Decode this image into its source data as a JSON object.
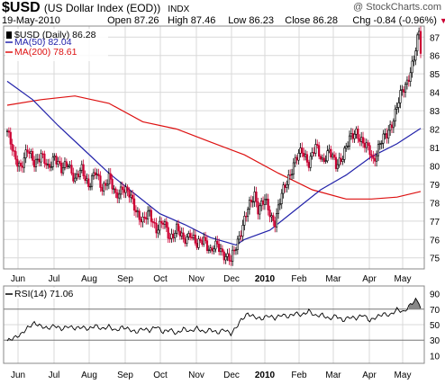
{
  "header": {
    "symbol": "$USD",
    "description": "(US Dollar Index (EOD))",
    "exchange": "INDX",
    "watermark": "@ StockCharts.com",
    "date": "19-May-2010",
    "open": "Open 87.26",
    "high": "High 87.46",
    "low": "Low 86.23",
    "close": "Close 86.28",
    "change": "Chg -0.84 (-0.96%)",
    "change_arrow": "▼"
  },
  "legend": {
    "price": "$USD (Daily) 86.28",
    "ma50": "MA(50) 82.04",
    "ma200": "MA(200) 78.61",
    "rsi": "RSI(14) 71.06"
  },
  "colors": {
    "up": "#000000",
    "down": "#cc0033",
    "ma50": "#2222aa",
    "ma200": "#dd1111",
    "grid": "#d9d9d9",
    "rsi_line": "#000000",
    "rsi_fill": "#888888"
  },
  "chart_data": [
    {
      "type": "candlestick",
      "series_name": "$USD (Daily)",
      "yticks": [
        75,
        76,
        77,
        78,
        79,
        80,
        81,
        82,
        83,
        84,
        85,
        86,
        87
      ],
      "ylim": [
        74.4,
        87.6
      ],
      "x_labels": [
        "Jun",
        "Jul",
        "Aug",
        "Sep",
        "Oct",
        "Nov",
        "Dec",
        "2010",
        "Feb",
        "Mar",
        "Apr",
        "May"
      ],
      "close_path": [
        [
          0,
          81.9
        ],
        [
          4,
          80.5
        ],
        [
          8,
          80.0
        ],
        [
          12,
          80.8
        ],
        [
          16,
          80.2
        ],
        [
          20,
          80.6
        ],
        [
          24,
          79.8
        ],
        [
          28,
          80.6
        ],
        [
          32,
          79.7
        ],
        [
          36,
          80.2
        ],
        [
          40,
          79.2
        ],
        [
          44,
          79.8
        ],
        [
          48,
          79.0
        ],
        [
          52,
          79.6
        ],
        [
          56,
          78.8
        ],
        [
          60,
          79.4
        ],
        [
          64,
          78.3
        ],
        [
          68,
          78.9
        ],
        [
          72,
          78.4
        ],
        [
          76,
          77.6
        ],
        [
          80,
          77.0
        ],
        [
          84,
          77.4
        ],
        [
          88,
          76.6
        ],
        [
          92,
          76.9
        ],
        [
          96,
          76.1
        ],
        [
          100,
          76.6
        ],
        [
          104,
          75.9
        ],
        [
          108,
          76.4
        ],
        [
          112,
          75.6
        ],
        [
          116,
          76.1
        ],
        [
          120,
          75.3
        ],
        [
          124,
          75.7
        ],
        [
          128,
          75.2
        ],
        [
          132,
          74.8
        ],
        [
          134,
          75.4
        ],
        [
          138,
          76.5
        ],
        [
          142,
          77.6
        ],
        [
          146,
          78.5
        ],
        [
          148,
          77.7
        ],
        [
          152,
          78.1
        ],
        [
          156,
          77.2
        ],
        [
          158,
          77.0
        ],
        [
          162,
          78.4
        ],
        [
          166,
          79.4
        ],
        [
          170,
          80.3
        ],
        [
          174,
          80.8
        ],
        [
          178,
          80.2
        ],
        [
          182,
          81.0
        ],
        [
          186,
          80.3
        ],
        [
          190,
          80.8
        ],
        [
          194,
          80.0
        ],
        [
          198,
          80.6
        ],
        [
          202,
          81.4
        ],
        [
          206,
          81.9
        ],
        [
          210,
          81.2
        ],
        [
          214,
          80.8
        ],
        [
          216,
          80.3
        ],
        [
          220,
          81.2
        ],
        [
          224,
          81.7
        ],
        [
          228,
          82.6
        ],
        [
          232,
          83.8
        ],
        [
          236,
          84.6
        ],
        [
          240,
          85.8
        ],
        [
          242,
          86.8
        ],
        [
          243,
          87.2
        ],
        [
          244,
          86.3
        ]
      ],
      "ma50": [
        [
          0,
          84.6
        ],
        [
          15,
          83.6
        ],
        [
          30,
          82.2
        ],
        [
          45,
          80.9
        ],
        [
          60,
          79.6
        ],
        [
          75,
          78.5
        ],
        [
          90,
          77.4
        ],
        [
          105,
          76.8
        ],
        [
          120,
          76.1
        ],
        [
          135,
          75.7
        ],
        [
          140,
          76.0
        ],
        [
          155,
          76.5
        ],
        [
          170,
          77.6
        ],
        [
          185,
          78.7
        ],
        [
          200,
          79.5
        ],
        [
          215,
          80.5
        ],
        [
          230,
          81.2
        ],
        [
          244,
          82.04
        ]
      ],
      "ma200": [
        [
          0,
          83.3
        ],
        [
          20,
          83.6
        ],
        [
          40,
          83.8
        ],
        [
          60,
          83.4
        ],
        [
          80,
          82.4
        ],
        [
          100,
          82.0
        ],
        [
          120,
          81.3
        ],
        [
          140,
          80.6
        ],
        [
          160,
          79.6
        ],
        [
          180,
          78.7
        ],
        [
          200,
          78.2
        ],
        [
          215,
          78.2
        ],
        [
          230,
          78.3
        ],
        [
          244,
          78.61
        ]
      ]
    },
    {
      "type": "line",
      "series_name": "RSI(14)",
      "yticks": [
        10,
        30,
        50,
        70,
        90
      ],
      "ylim": [
        0,
        100
      ],
      "reference_lines": [
        30,
        70
      ],
      "x_labels": [
        "Jun",
        "Jul",
        "Aug",
        "Sep",
        "Oct",
        "Nov",
        "Dec",
        "2010",
        "Feb",
        "Mar",
        "Apr",
        "May"
      ],
      "values": [
        [
          0,
          29
        ],
        [
          4,
          33
        ],
        [
          8,
          37
        ],
        [
          12,
          46
        ],
        [
          16,
          52
        ],
        [
          20,
          48
        ],
        [
          24,
          45
        ],
        [
          28,
          49
        ],
        [
          32,
          44
        ],
        [
          36,
          48
        ],
        [
          40,
          45
        ],
        [
          44,
          47
        ],
        [
          48,
          44
        ],
        [
          52,
          49
        ],
        [
          56,
          44
        ],
        [
          60,
          48
        ],
        [
          64,
          42
        ],
        [
          68,
          47
        ],
        [
          72,
          44
        ],
        [
          76,
          40
        ],
        [
          80,
          45
        ],
        [
          84,
          42
        ],
        [
          88,
          48
        ],
        [
          92,
          40
        ],
        [
          96,
          44
        ],
        [
          100,
          38
        ],
        [
          104,
          45
        ],
        [
          108,
          41
        ],
        [
          112,
          46
        ],
        [
          116,
          40
        ],
        [
          120,
          44
        ],
        [
          124,
          39
        ],
        [
          128,
          44
        ],
        [
          132,
          38
        ],
        [
          135,
          46
        ],
        [
          138,
          56
        ],
        [
          142,
          64
        ],
        [
          146,
          60
        ],
        [
          150,
          57
        ],
        [
          154,
          62
        ],
        [
          158,
          58
        ],
        [
          162,
          63
        ],
        [
          166,
          60
        ],
        [
          170,
          65
        ],
        [
          174,
          62
        ],
        [
          178,
          68
        ],
        [
          182,
          61
        ],
        [
          186,
          63
        ],
        [
          190,
          57
        ],
        [
          194,
          62
        ],
        [
          198,
          55
        ],
        [
          202,
          60
        ],
        [
          206,
          58
        ],
        [
          210,
          63
        ],
        [
          214,
          55
        ],
        [
          218,
          60
        ],
        [
          222,
          64
        ],
        [
          226,
          62
        ],
        [
          230,
          70
        ],
        [
          234,
          66
        ],
        [
          238,
          76
        ],
        [
          241,
          82
        ],
        [
          243,
          79
        ],
        [
          244,
          71.06
        ]
      ]
    }
  ]
}
